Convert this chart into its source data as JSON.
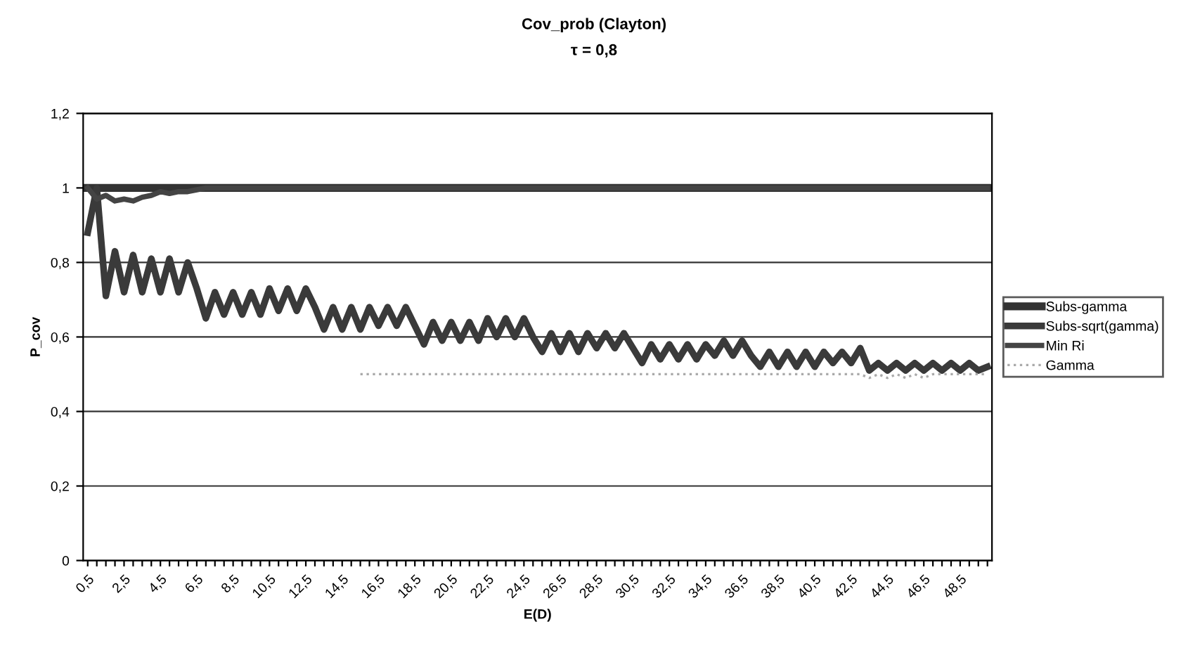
{
  "chart_data": {
    "type": "line",
    "title": "Cov_prob (Clayton)",
    "subtitle": "τ = 0,8",
    "xlabel": "E(D)",
    "ylabel": "P_cov",
    "categories": [
      "0,5",
      null,
      null,
      null,
      "2,5",
      null,
      null,
      null,
      "4,5",
      null,
      null,
      null,
      "6,5",
      null,
      null,
      null,
      "8,5",
      null,
      null,
      null,
      "10,5",
      null,
      null,
      null,
      "12,5",
      null,
      null,
      null,
      "14,5",
      null,
      null,
      null,
      "16,5",
      null,
      null,
      null,
      "18,5",
      null,
      null,
      null,
      "20,5",
      null,
      null,
      null,
      "22,5",
      null,
      null,
      null,
      "24,5",
      null,
      null,
      null,
      "26,5",
      null,
      null,
      null,
      "28,5",
      null,
      null,
      null,
      "30,5",
      null,
      null,
      null,
      "32,5",
      null,
      null,
      null,
      "34,5",
      null,
      null,
      null,
      "36,5",
      null,
      null,
      null,
      "38,5",
      null,
      null,
      null,
      "40,5",
      null,
      null,
      null,
      "42,5",
      null,
      null,
      null,
      "44,5",
      null,
      null,
      null,
      "46,5",
      null,
      null,
      null,
      "48,5",
      null,
      null,
      null
    ],
    "ylim": [
      0,
      1.2
    ],
    "yticks": [
      {
        "value": 0,
        "label": "0"
      },
      {
        "value": 0.2,
        "label": "0,2"
      },
      {
        "value": 0.4,
        "label": "0,4"
      },
      {
        "value": 0.6,
        "label": "0,6"
      },
      {
        "value": 0.8,
        "label": "0,8"
      },
      {
        "value": 1,
        "label": "1"
      },
      {
        "value": 1.2,
        "label": "1,2"
      }
    ],
    "grid": "y",
    "legend": "right",
    "series": [
      {
        "name": "Subs-gamma",
        "color": "#333333",
        "line_style": "solid",
        "values": [
          1,
          1,
          1,
          1,
          1,
          1,
          1,
          1,
          1,
          1,
          1,
          1,
          1,
          1,
          1,
          1,
          1,
          1,
          1,
          1,
          1,
          1,
          1,
          1,
          1,
          1,
          1,
          1,
          1,
          1,
          1,
          1,
          1,
          1,
          1,
          1,
          1,
          1,
          1,
          1,
          1,
          1,
          1,
          1,
          1,
          1,
          1,
          1,
          1,
          1,
          1,
          1,
          1,
          1,
          1,
          1,
          1,
          1,
          1,
          1,
          1,
          1,
          1,
          1,
          1,
          1,
          1,
          1,
          1,
          1,
          1,
          1,
          1,
          1,
          1,
          1,
          1,
          1,
          1,
          1,
          1,
          1,
          1,
          1,
          1,
          1,
          1,
          1,
          1,
          1,
          1,
          1,
          1,
          1,
          1,
          1,
          1,
          1,
          1,
          1
        ]
      },
      {
        "name": "Subs-sqrt(gamma)",
        "color": "#3a3a3a",
        "line_style": "solid",
        "values": [
          0.88,
          1.0,
          0.71,
          0.83,
          0.72,
          0.82,
          0.72,
          0.81,
          0.72,
          0.81,
          0.72,
          0.8,
          0.73,
          0.65,
          0.72,
          0.66,
          0.72,
          0.66,
          0.72,
          0.66,
          0.73,
          0.67,
          0.73,
          0.67,
          0.73,
          0.68,
          0.62,
          0.68,
          0.62,
          0.68,
          0.62,
          0.68,
          0.63,
          0.68,
          0.63,
          0.68,
          0.63,
          0.58,
          0.64,
          0.59,
          0.64,
          0.59,
          0.64,
          0.59,
          0.65,
          0.6,
          0.65,
          0.6,
          0.65,
          0.6,
          0.56,
          0.61,
          0.56,
          0.61,
          0.56,
          0.61,
          0.57,
          0.61,
          0.57,
          0.61,
          0.57,
          0.53,
          0.58,
          0.54,
          0.58,
          0.54,
          0.58,
          0.54,
          0.58,
          0.55,
          0.59,
          0.55,
          0.59,
          0.55,
          0.52,
          0.56,
          0.52,
          0.56,
          0.52,
          0.56,
          0.52,
          0.56,
          0.53,
          0.56,
          0.53,
          0.57,
          0.51,
          0.53,
          0.51,
          0.53,
          0.51,
          0.53,
          0.51,
          0.53,
          0.51,
          0.53,
          0.51,
          0.53,
          0.51,
          0.52
        ]
      },
      {
        "name": "Min Ri",
        "color": "#444444",
        "line_style": "solid",
        "values": [
          1,
          0.97,
          0.98,
          0.965,
          0.97,
          0.965,
          0.975,
          0.98,
          0.99,
          0.985,
          0.99,
          0.99,
          0.995,
          1,
          1,
          1,
          1,
          1,
          1,
          1,
          1,
          1,
          1,
          1,
          1,
          1,
          1,
          1,
          1,
          1,
          1,
          1,
          1,
          1,
          1,
          1,
          1,
          1,
          1,
          1,
          1,
          1,
          1,
          1,
          1,
          1,
          1,
          1,
          1,
          1,
          1,
          1,
          1,
          1,
          1,
          1,
          1,
          1,
          1,
          1,
          1,
          1,
          1,
          1,
          1,
          1,
          1,
          1,
          1,
          1,
          1,
          1,
          1,
          1,
          1,
          1,
          1,
          1,
          1,
          1,
          1,
          1,
          1,
          1,
          1,
          1,
          1,
          1,
          1,
          1,
          1,
          1,
          1,
          1,
          1,
          1,
          1,
          1,
          1,
          1
        ]
      },
      {
        "name": "Gamma",
        "color": "#aaaaaa",
        "line_style": "dotted",
        "values": [
          null,
          null,
          null,
          null,
          null,
          null,
          null,
          null,
          null,
          null,
          null,
          null,
          null,
          null,
          null,
          null,
          null,
          null,
          null,
          null,
          null,
          null,
          null,
          null,
          null,
          null,
          null,
          null,
          null,
          null,
          0.5,
          0.5,
          0.5,
          0.5,
          0.5,
          0.5,
          0.5,
          0.5,
          0.5,
          0.5,
          0.5,
          0.5,
          0.5,
          0.5,
          0.5,
          0.5,
          0.5,
          0.5,
          0.5,
          0.5,
          0.5,
          0.5,
          0.5,
          0.5,
          0.5,
          0.5,
          0.5,
          0.5,
          0.5,
          0.5,
          0.5,
          0.5,
          0.5,
          0.5,
          0.5,
          0.5,
          0.5,
          0.5,
          0.5,
          0.5,
          0.5,
          0.5,
          0.5,
          0.5,
          0.5,
          0.5,
          0.5,
          0.5,
          0.5,
          0.5,
          0.5,
          0.5,
          0.5,
          0.5,
          0.5,
          0.5,
          0.49,
          0.5,
          0.49,
          0.5,
          0.49,
          0.5,
          0.49,
          0.5,
          0.5,
          0.5,
          0.5,
          0.5,
          0.5,
          0.5
        ]
      }
    ]
  }
}
